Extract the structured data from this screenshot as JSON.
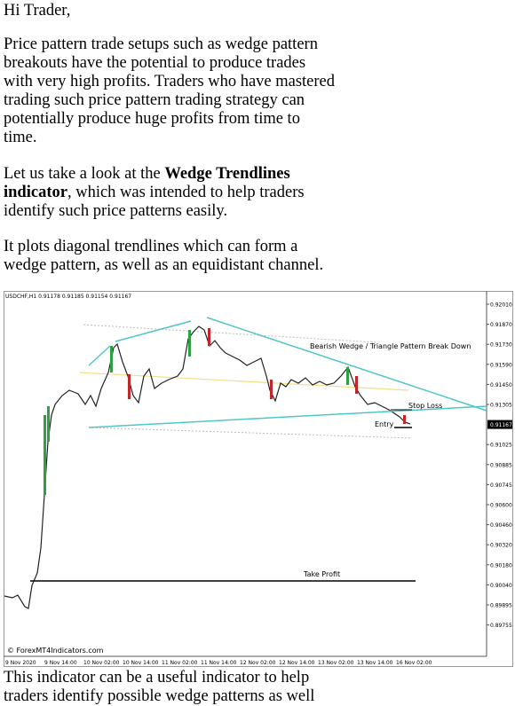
{
  "greeting": "Hi Trader,",
  "paragraphs": [
    {
      "lines": [
        [
          {
            "text": "Price pattern trade setups such as wedge pattern"
          }
        ],
        [
          {
            "text": "breakouts have the potential to produce trades"
          }
        ],
        [
          {
            "text": "with very high profits. Traders who have mastered"
          }
        ],
        [
          {
            "text": "trading such price pattern trading strategy can"
          }
        ],
        [
          {
            "text": "potentially produce huge profits from time to"
          }
        ],
        [
          {
            "text": "time."
          }
        ]
      ]
    },
    {
      "lines": [
        [
          {
            "text": "Let us take a look at the "
          },
          {
            "text": "Wedge Trendlines",
            "bold": true
          }
        ],
        [
          {
            "text": "indicator",
            "bold": true
          },
          {
            "text": ", which was intended to help traders"
          }
        ],
        [
          {
            "text": "identify such price patterns easily."
          }
        ]
      ]
    },
    {
      "lines": [
        [
          {
            "text": "It plots diagonal trendlines which can form a"
          }
        ],
        [
          {
            "text": "wedge pattern, as well as an equidistant channel."
          }
        ]
      ]
    },
    {
      "lines": [
        [
          {
            "text": "This indicator can be a useful indicator to help"
          }
        ],
        [
          {
            "text": "traders identify possible wedge patterns as well"
          }
        ]
      ]
    }
  ],
  "figure": {
    "header": "USDCHF,H1  0.91178 0.91185 0.91154 0.91167",
    "pattern_label": "Bearish Wedge / Triangle Pattern Break Down",
    "stop_loss": "Stop Loss",
    "entry": "Entry",
    "take_profit": "Take Profit",
    "watermark": "© ForexMT4Indicators.com",
    "price_labels": [
      "0.92010",
      "0.91870",
      "0.91730",
      "0.91590",
      "0.91450",
      "0.91305",
      "0.91167",
      "0.91025",
      "0.90885",
      "0.90745",
      "0.90600",
      "0.90460",
      "0.90320",
      "0.90180",
      "0.90040",
      "0.89895",
      "0.89755"
    ],
    "current_price_index": 6,
    "time_labels": [
      "9 Nov 2020",
      "9 Nov 14:00",
      "10 Nov 02:00",
      "10 Nov 14:00",
      "11 Nov 02:00",
      "11 Nov 14:00",
      "12 Nov 02:00",
      "12 Nov 14:00",
      "13 Nov 02:00",
      "13 Nov 14:00",
      "16 Nov 02:00"
    ]
  }
}
